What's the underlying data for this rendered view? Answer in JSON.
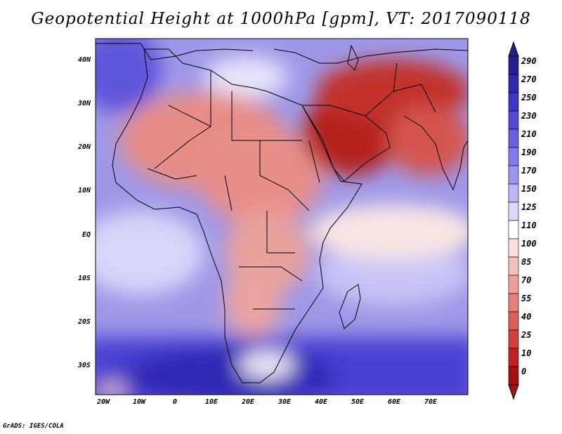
{
  "title": "Geopotential Height at 1000hPa [gpm], VT: 2017090118",
  "credit": "GrADS: IGES/COLA",
  "map": {
    "lat_labels": [
      "40N",
      "30N",
      "20N",
      "10N",
      "EQ",
      "10S",
      "20S",
      "30S"
    ],
    "lon_labels": [
      "20W",
      "10W",
      "0",
      "10E",
      "20E",
      "30E",
      "40E",
      "50E",
      "60E",
      "70E"
    ],
    "lat_range": [
      -36,
      45
    ],
    "lon_range": [
      -22,
      80
    ]
  },
  "colorbar": {
    "labels": [
      "290",
      "270",
      "250",
      "230",
      "210",
      "190",
      "170",
      "150",
      "125",
      "110",
      "100",
      "85",
      "70",
      "55",
      "40",
      "25",
      "10",
      "0"
    ],
    "colors": [
      "#271d8f",
      "#3227b0",
      "#3f33c8",
      "#5447d6",
      "#6a5fe0",
      "#8279e8",
      "#9d96ef",
      "#bdb8f5",
      "#dcdaf9",
      "#ffffff",
      "#fbe0dd",
      "#f5c0bb",
      "#eda09a",
      "#e57f79",
      "#dc5f59",
      "#d03f3b",
      "#bf2222",
      "#a51010"
    ]
  }
}
